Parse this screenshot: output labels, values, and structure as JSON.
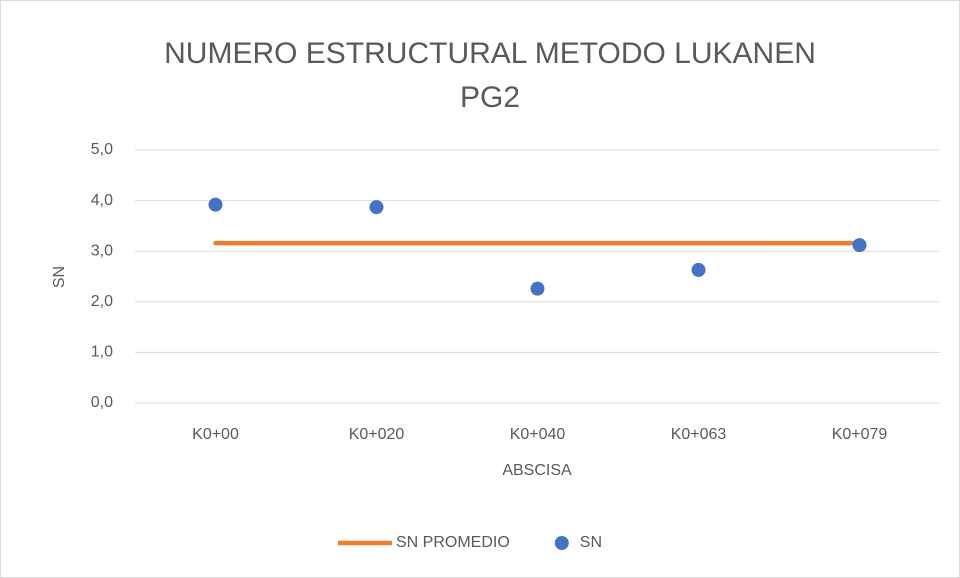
{
  "chart_data": {
    "type": "line",
    "title": "NUMERO ESTRUCTURAL METODO LUKANEN PG2",
    "x_label": "ABSCISA",
    "y_label": "SN",
    "categories": [
      "K0+00",
      "K0+020",
      "K0+040",
      "K0+063",
      "K0+079"
    ],
    "series": [
      {
        "name": "SN PROMEDIO",
        "type": "line",
        "color": "#ed7d31",
        "values": [
          3.16,
          3.16,
          3.16,
          3.16,
          3.16
        ]
      },
      {
        "name": "SN",
        "type": "scatter",
        "color": "#4472c4",
        "values": [
          3.92,
          3.87,
          2.26,
          2.63,
          3.12
        ]
      }
    ],
    "ylim": [
      0,
      5
    ],
    "yticks": [
      {
        "value": 0,
        "label": "0,0"
      },
      {
        "value": 1,
        "label": "1,0"
      },
      {
        "value": 2,
        "label": "2,0"
      },
      {
        "value": 3,
        "label": "3,0"
      },
      {
        "value": 4,
        "label": "4,0"
      },
      {
        "value": 5,
        "label": "5,0"
      }
    ],
    "grid": true,
    "legend": "bottom"
  }
}
